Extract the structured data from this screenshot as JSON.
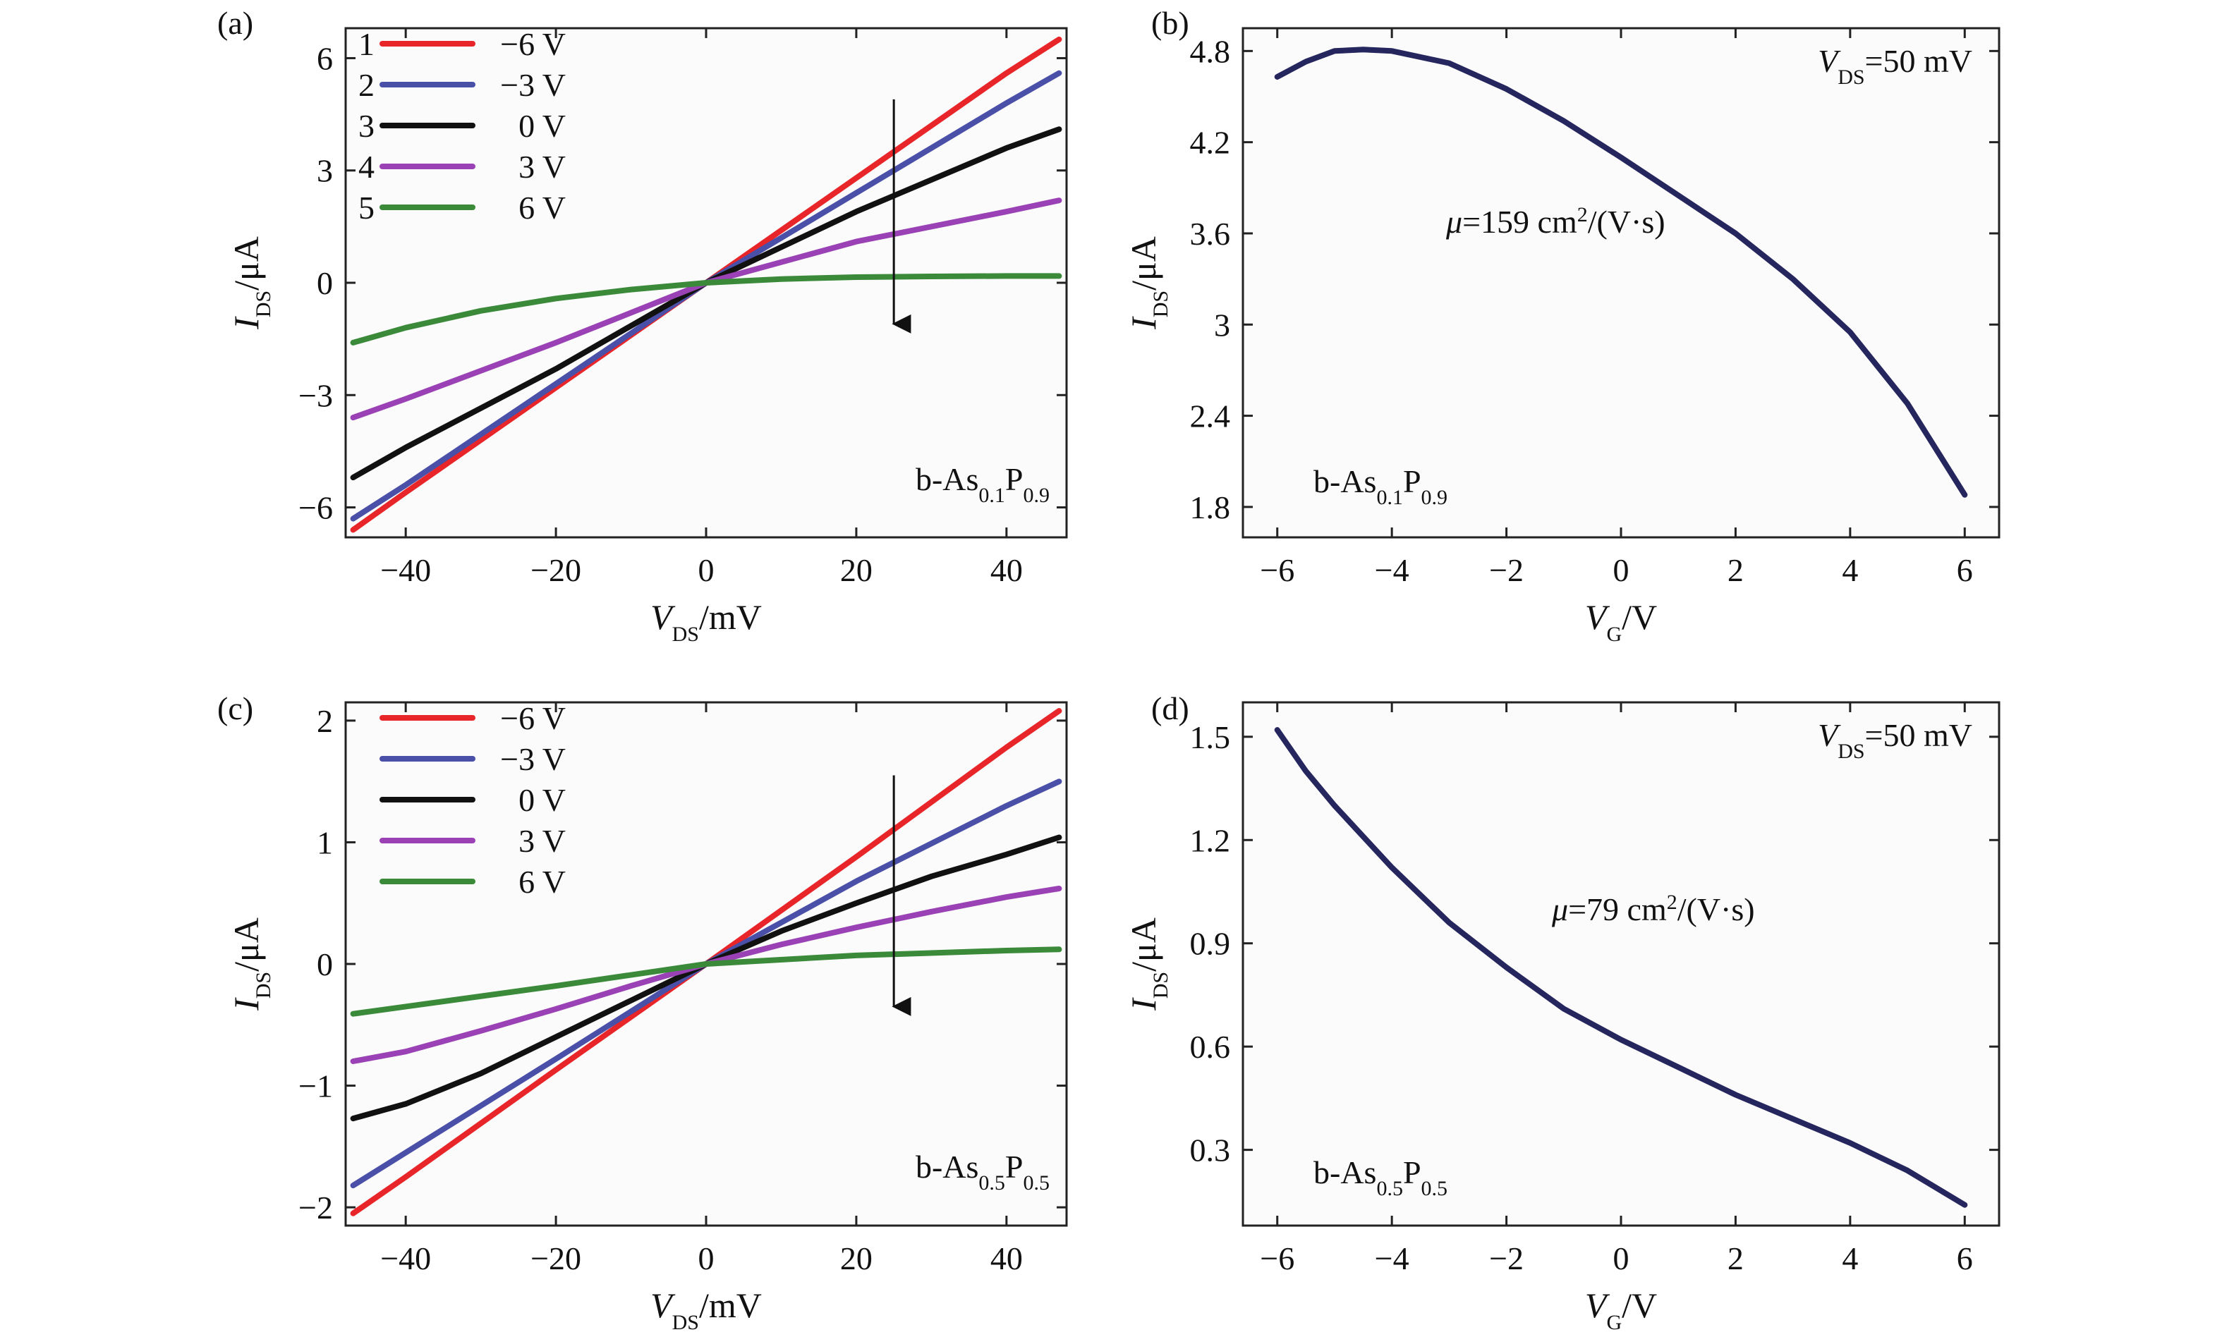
{
  "colors": {
    "red": "#e8262a",
    "blue": "#4a4fa8",
    "black": "#111111",
    "magenta": "#9a42b5",
    "green": "#3a8a3a",
    "navy": "#26265e",
    "frame": "#222222"
  },
  "chart_data": [
    {
      "panel": "(a)",
      "type": "line",
      "xlabel": "V_DS/mV",
      "ylabel": "I_DS/μA",
      "xlim": [
        -48,
        48
      ],
      "ylim": [
        -6.8,
        6.8
      ],
      "xticks": [
        -40,
        -20,
        0,
        20,
        40
      ],
      "yticks": [
        -6,
        -3,
        0,
        3,
        6
      ],
      "sample_label": "b-As0.1P0.9",
      "arrow": "downward arrow at V_DS ≈ 25 mV from about 4.9 to -1.1 μA",
      "legend": {
        "position": "top-left",
        "numbered": true
      },
      "series": [
        {
          "index": "1",
          "name": "−6 V",
          "color": "red",
          "x": [
            -47,
            -40,
            -20,
            0,
            20,
            40,
            47
          ],
          "y": [
            -6.6,
            -5.6,
            -2.8,
            0,
            2.8,
            5.6,
            6.5
          ]
        },
        {
          "index": "2",
          "name": "−3 V",
          "color": "blue",
          "x": [
            -47,
            -40,
            -20,
            0,
            20,
            40,
            47
          ],
          "y": [
            -6.3,
            -5.4,
            -2.7,
            0,
            2.4,
            4.8,
            5.6
          ]
        },
        {
          "index": "3",
          "name": "0 V",
          "color": "black",
          "x": [
            -47,
            -40,
            -20,
            0,
            20,
            40,
            47
          ],
          "y": [
            -5.2,
            -4.4,
            -2.3,
            0,
            1.9,
            3.6,
            4.1
          ]
        },
        {
          "index": "4",
          "name": "3 V",
          "color": "magenta",
          "x": [
            -47,
            -40,
            -20,
            0,
            20,
            40,
            47
          ],
          "y": [
            -3.6,
            -3.1,
            -1.6,
            0,
            1.1,
            1.9,
            2.2
          ]
        },
        {
          "index": "5",
          "name": "6 V",
          "color": "green",
          "x": [
            -47,
            -40,
            -30,
            -20,
            -10,
            0,
            10,
            20,
            30,
            40,
            47
          ],
          "y": [
            -1.6,
            -1.2,
            -0.75,
            -0.42,
            -0.18,
            0,
            0.1,
            0.15,
            0.17,
            0.18,
            0.18
          ]
        }
      ]
    },
    {
      "panel": "(b)",
      "type": "line",
      "xlabel": "V_G/V",
      "ylabel": "I_DS/μA",
      "xlim": [
        -6.6,
        6.6
      ],
      "ylim": [
        1.6,
        4.95
      ],
      "xticks": [
        -6,
        -4,
        -2,
        0,
        2,
        4,
        6
      ],
      "yticks": [
        1.8,
        2.4,
        3.0,
        3.6,
        4.2,
        4.8
      ],
      "annotation": "V_DS=50 mV",
      "mobility": "μ=159 cm²/(V·s)",
      "sample_label": "b-As0.1P0.9",
      "series": [
        {
          "color": "navy",
          "x": [
            -6,
            -5.5,
            -5,
            -4.5,
            -4,
            -3,
            -2,
            -1,
            0,
            1,
            2,
            3,
            4,
            5,
            6
          ],
          "y": [
            4.63,
            4.73,
            4.8,
            4.81,
            4.8,
            4.72,
            4.55,
            4.34,
            4.1,
            3.85,
            3.6,
            3.3,
            2.95,
            2.48,
            1.88
          ]
        }
      ]
    },
    {
      "panel": "(c)",
      "type": "line",
      "xlabel": "V_DS/mV",
      "ylabel": "I_DS/μA",
      "xlim": [
        -48,
        48
      ],
      "ylim": [
        -2.15,
        2.15
      ],
      "xticks": [
        -40,
        -20,
        0,
        20,
        40
      ],
      "yticks": [
        -2,
        -1,
        0,
        1,
        2
      ],
      "sample_label": "b-As0.5P0.5",
      "arrow": "downward arrow at V_DS ≈ 25 mV from about 1.55 to -0.35 μA",
      "legend": {
        "position": "top-left",
        "numbered": false
      },
      "series": [
        {
          "name": "−6 V",
          "color": "red",
          "x": [
            -47,
            -40,
            -20,
            0,
            20,
            40,
            47
          ],
          "y": [
            -2.05,
            -1.75,
            -0.87,
            0,
            0.88,
            1.78,
            2.08
          ]
        },
        {
          "name": "−3 V",
          "color": "blue",
          "x": [
            -47,
            -40,
            -20,
            0,
            20,
            40,
            47
          ],
          "y": [
            -1.82,
            -1.55,
            -0.78,
            0,
            0.68,
            1.3,
            1.5
          ]
        },
        {
          "name": "0 V",
          "color": "black",
          "x": [
            -47,
            -40,
            -30,
            -20,
            -10,
            0,
            10,
            20,
            30,
            40,
            47
          ],
          "y": [
            -1.27,
            -1.15,
            -0.9,
            -0.6,
            -0.3,
            0,
            0.27,
            0.5,
            0.72,
            0.9,
            1.04
          ]
        },
        {
          "name": "3 V",
          "color": "magenta",
          "x": [
            -47,
            -40,
            -30,
            -20,
            -10,
            0,
            10,
            20,
            30,
            40,
            47
          ],
          "y": [
            -0.8,
            -0.72,
            -0.55,
            -0.37,
            -0.18,
            0,
            0.16,
            0.3,
            0.43,
            0.55,
            0.62
          ]
        },
        {
          "name": "6 V",
          "color": "green",
          "x": [
            -47,
            -40,
            -20,
            0,
            20,
            40,
            47
          ],
          "y": [
            -0.41,
            -0.35,
            -0.18,
            0,
            0.07,
            0.11,
            0.12
          ]
        }
      ]
    },
    {
      "panel": "(d)",
      "type": "line",
      "xlabel": "V_G/V",
      "ylabel": "I_DS/μA",
      "xlim": [
        -6.6,
        6.6
      ],
      "ylim": [
        0.08,
        1.6
      ],
      "xticks": [
        -6,
        -4,
        -2,
        0,
        2,
        4,
        6
      ],
      "yticks": [
        0.3,
        0.6,
        0.9,
        1.2,
        1.5
      ],
      "annotation": "V_DS=50 mV",
      "mobility": "μ=79 cm²/(V·s)",
      "sample_label": "b-As0.5P0.5",
      "series": [
        {
          "color": "navy",
          "x": [
            -6,
            -5.5,
            -5,
            -4,
            -3,
            -2,
            -1,
            0,
            1,
            2,
            3,
            4,
            5,
            6
          ],
          "y": [
            1.52,
            1.4,
            1.3,
            1.12,
            0.96,
            0.83,
            0.71,
            0.62,
            0.54,
            0.46,
            0.39,
            0.32,
            0.24,
            0.14
          ]
        }
      ]
    }
  ]
}
